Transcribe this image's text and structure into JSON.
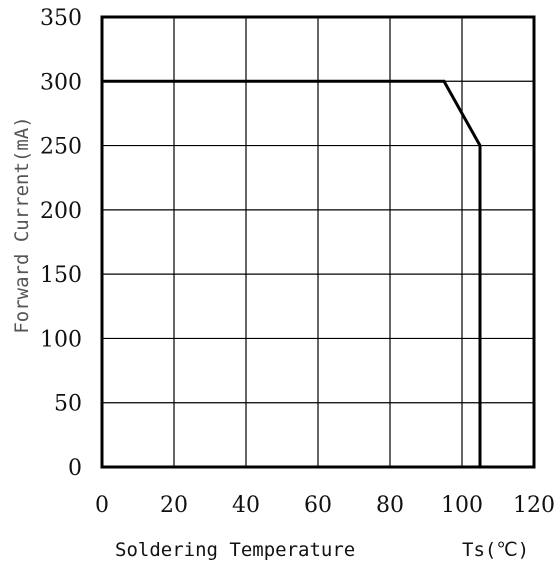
{
  "chart_data": {
    "type": "line",
    "title": "",
    "xlabel": "Soldering Temperature",
    "xlabel_unit": "Ts(℃)",
    "ylabel": "Forward Current(mA)",
    "xlim": [
      0,
      120
    ],
    "ylim": [
      0,
      350
    ],
    "x_ticks": [
      "0",
      "20",
      "40",
      "60",
      "80",
      "100",
      "120"
    ],
    "y_ticks": [
      "0",
      "50",
      "100",
      "150",
      "200",
      "250",
      "300",
      "350"
    ],
    "grid": true,
    "series": [
      {
        "points": [
          [
            0,
            300
          ],
          [
            95,
            300
          ],
          [
            105,
            250
          ],
          [
            105,
            0
          ]
        ]
      }
    ],
    "vertical_gridlines_x": [
      20,
      40,
      60,
      80,
      100
    ],
    "horizontal_gridlines_y": [
      50,
      100,
      150,
      200,
      250,
      300
    ]
  }
}
